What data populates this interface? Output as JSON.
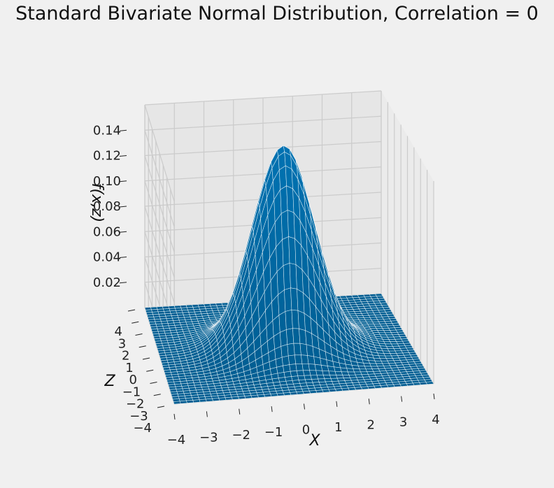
{
  "chart_data": {
    "type": "surface3d",
    "title": "Standard Bivariate Normal Distribution, Correlation = 0",
    "xlabel": "X",
    "ylabel": "Z",
    "zlabel": "f(x,z)",
    "x_range": [
      -4,
      4
    ],
    "z_range": [
      -4,
      4
    ],
    "f_range": [
      0,
      0.16
    ],
    "x_ticks": [
      "−4",
      "−3",
      "−2",
      "−1",
      "0",
      "1",
      "2",
      "3",
      "4"
    ],
    "z_ticks": [
      "−4",
      "−3",
      "−2",
      "−1",
      "0",
      "1",
      "2",
      "3",
      "4"
    ],
    "f_ticks": [
      "0.02",
      "0.04",
      "0.06",
      "0.08",
      "0.10",
      "0.12",
      "0.14"
    ],
    "correlation": 0,
    "peak_value": 0.159,
    "surface_color": "#0072b2",
    "wire_color": "#ffffff",
    "grid": true
  }
}
